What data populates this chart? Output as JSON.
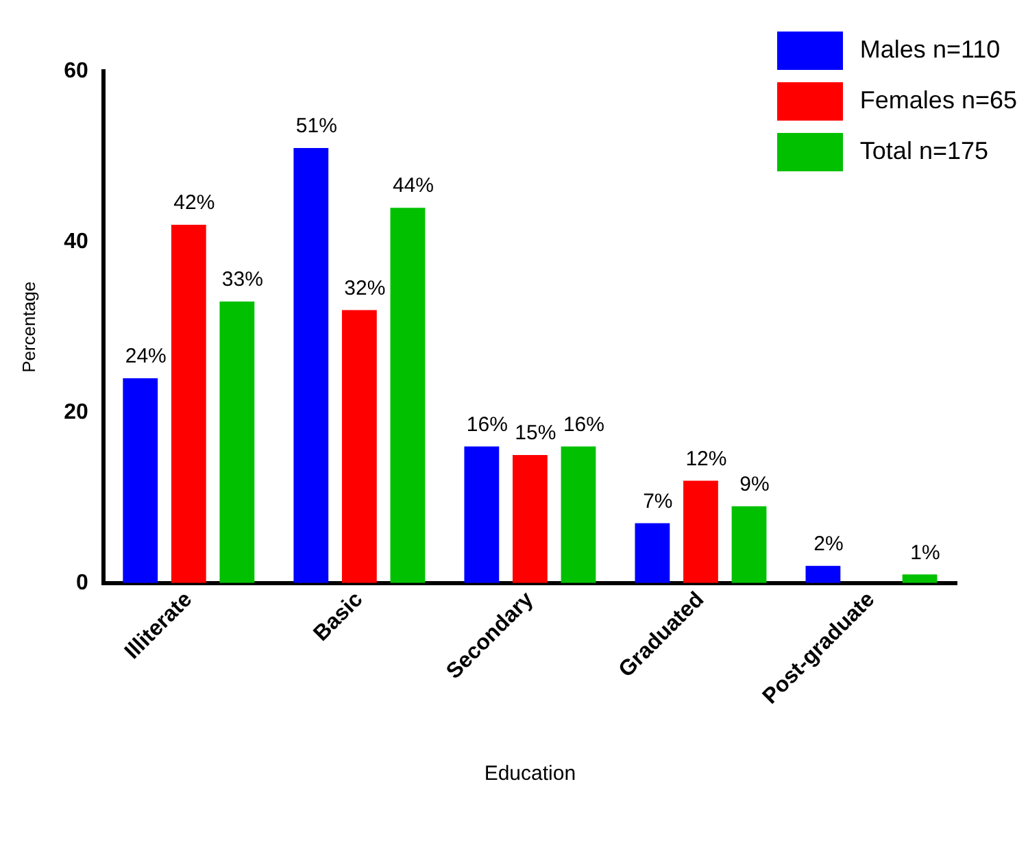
{
  "chart_data": {
    "type": "bar",
    "xlabel": "Education",
    "ylabel": "Percentage",
    "categories": [
      "Illiterate",
      "Basic",
      "Secondary",
      "Graduated",
      "Post-graduate"
    ],
    "series": [
      {
        "name": "Males n=110",
        "color": "#0000ff",
        "values": [
          24,
          51,
          16,
          7,
          2
        ],
        "value_labels": [
          "24%",
          "51%",
          "16%",
          "7%",
          "2%"
        ]
      },
      {
        "name": "Females n=65",
        "color": "#ff0000",
        "values": [
          42,
          32,
          15,
          12,
          0
        ],
        "value_labels": [
          "42%",
          "32%",
          "15%",
          "12%",
          null
        ]
      },
      {
        "name": "Total n=175",
        "color": "#00c000",
        "values": [
          33,
          44,
          16,
          9,
          1
        ],
        "value_labels": [
          "33%",
          "44%",
          "16%",
          "9%",
          "1%"
        ]
      }
    ],
    "ylim": [
      0,
      60
    ],
    "yticks": [
      0,
      20,
      40,
      60
    ],
    "grid": false,
    "legend": "top right"
  }
}
